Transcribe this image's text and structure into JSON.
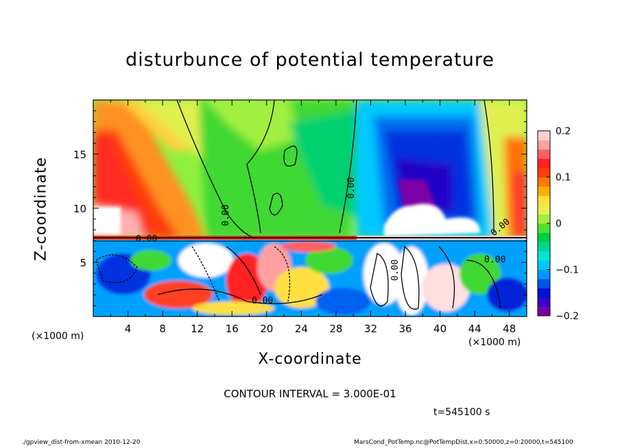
{
  "title": "disturbunce of potential temperature",
  "chart_data": {
    "type": "heatmap",
    "title": "disturbunce of potential temperature",
    "xlabel": "X-coordinate",
    "ylabel": "Z-coordinate",
    "x_unit": "(×1000 m)",
    "xlim": [
      0,
      50
    ],
    "ylim": [
      0,
      20
    ],
    "x_ticks": [
      "4",
      "8",
      "12",
      "16",
      "20",
      "24",
      "28",
      "32",
      "36",
      "40",
      "44",
      "48"
    ],
    "x_tick_values": [
      4,
      8,
      12,
      16,
      20,
      24,
      28,
      32,
      36,
      40,
      44,
      48
    ],
    "y_ticks": [
      "5",
      "10",
      "15"
    ],
    "y_tick_values": [
      5,
      10,
      15
    ],
    "colorbar": {
      "range": [
        -0.2,
        0.2
      ],
      "tick_labels": [
        "0.2",
        "0.1",
        "0",
        "−0.1",
        "−0.2"
      ],
      "tick_values": [
        0.2,
        0.1,
        0,
        -0.1,
        -0.2
      ],
      "colors": [
        "#7a00a8",
        "#3c00c8",
        "#0010d8",
        "#0050f0",
        "#0096ff",
        "#00c8ff",
        "#00e6d2",
        "#00d890",
        "#00d040",
        "#50e030",
        "#a0f040",
        "#e6f050",
        "#ffe040",
        "#ffb000",
        "#ff7800",
        "#ff3c00",
        "#ff2020",
        "#ff6060",
        "#ffa0a0",
        "#ffd0d0"
      ]
    },
    "contour_labels": [
      "0.00",
      "0.00",
      "0.00",
      "0.00",
      "0.00",
      "0.00",
      "0.00"
    ],
    "contour_interval": "CONTOUR INTERVAL = 3.000E-01"
  },
  "annotations": {
    "contour_interval": "CONTOUR INTERVAL = 3.000E-01",
    "time": "t=545100 s",
    "footer_left": "./gpview_dist-from-xmean  2010-12-20",
    "footer_right": "MarsCond_PotTemp.nc@PotTempDist,x=0:50000,z=0:20000,t=545100"
  }
}
